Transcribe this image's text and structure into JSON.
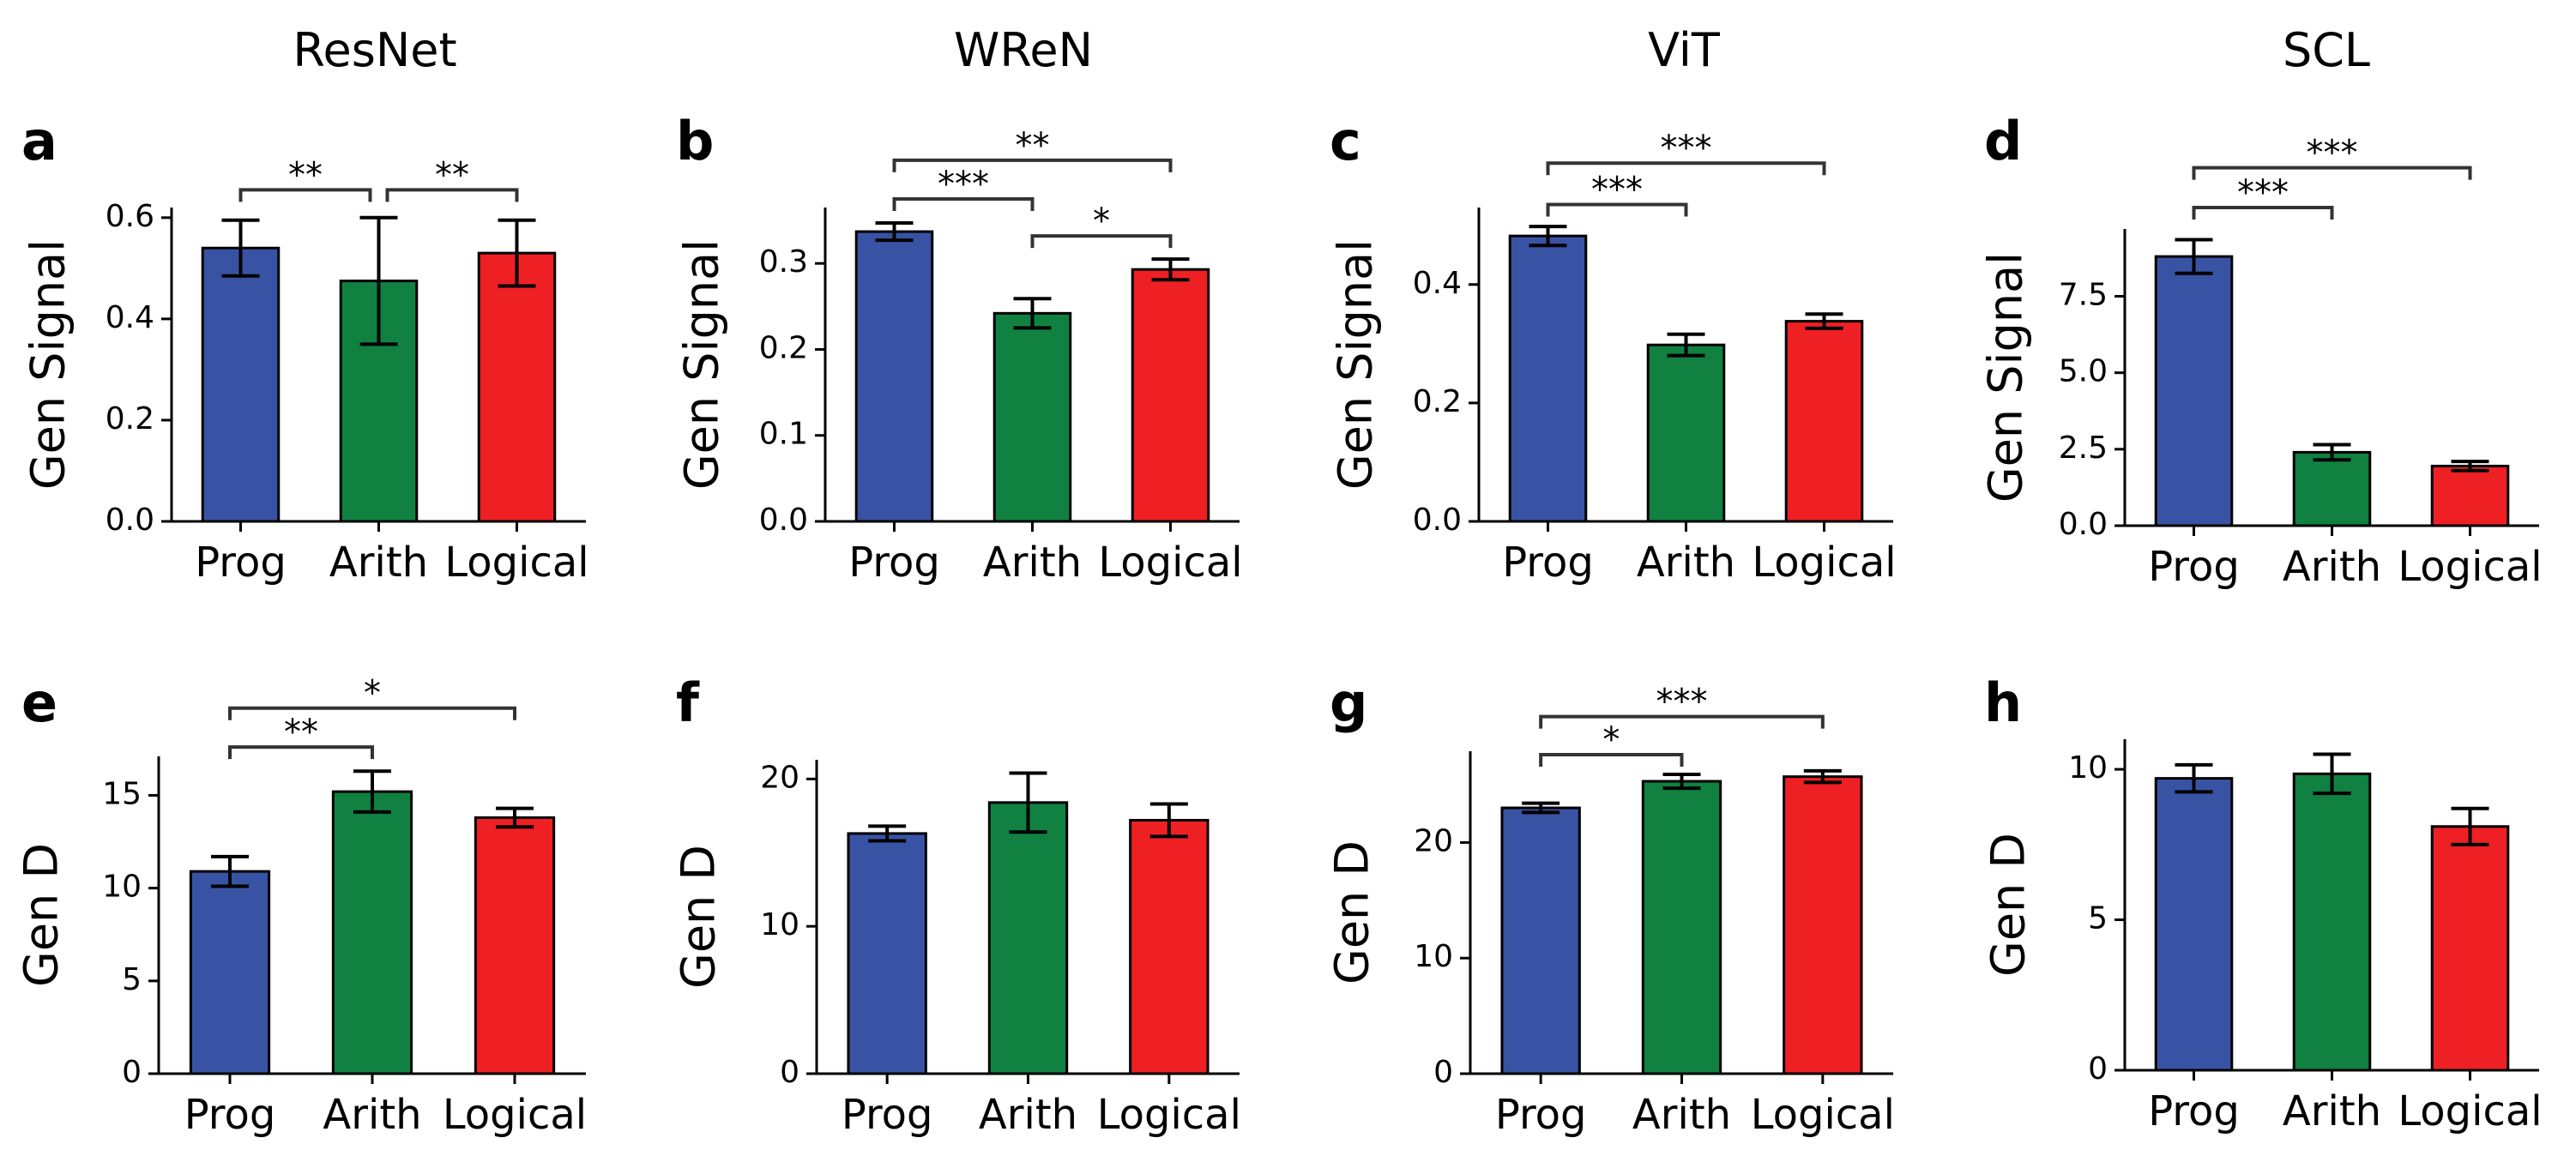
{
  "column_titles": [
    "ResNet",
    "WReN",
    "ViT",
    "SCL"
  ],
  "colors": {
    "Prog": "#3953a4",
    "Arith": "#108141",
    "Logical": "#ee2024"
  },
  "chart_data": [
    {
      "id": "a",
      "type": "bar",
      "title": "ResNet",
      "ylabel": "Gen Signal",
      "categories": [
        "Prog",
        "Arith",
        "Logical"
      ],
      "values": [
        0.54,
        0.475,
        0.53
      ],
      "errors": [
        0.055,
        0.125,
        0.065
      ],
      "ylim": [
        0,
        0.62
      ],
      "yticks": [
        0.0,
        0.2,
        0.4,
        0.6
      ],
      "ytick_labels": [
        "0.0",
        "0.2",
        "0.4",
        "0.6"
      ],
      "significance": [
        {
          "from": 0,
          "to": 1,
          "label": "**",
          "level": 0.655
        },
        {
          "from": 1,
          "to": 2,
          "label": "**",
          "level": 0.655
        }
      ]
    },
    {
      "id": "b",
      "type": "bar",
      "title": "WReN",
      "ylabel": "Gen Signal",
      "categories": [
        "Prog",
        "Arith",
        "Logical"
      ],
      "values": [
        0.337,
        0.242,
        0.293
      ],
      "errors": [
        0.01,
        0.017,
        0.012
      ],
      "ylim": [
        0,
        0.365
      ],
      "yticks": [
        0.0,
        0.1,
        0.2,
        0.3
      ],
      "ytick_labels": [
        "0.0",
        "0.1",
        "0.2",
        "0.3"
      ],
      "significance": [
        {
          "from": 0,
          "to": 2,
          "label": "**",
          "level": 0.42
        },
        {
          "from": 0,
          "to": 1,
          "label": "***",
          "level": 0.375
        },
        {
          "from": 1,
          "to": 2,
          "label": "*",
          "level": 0.332
        }
      ]
    },
    {
      "id": "c",
      "type": "bar",
      "title": "ViT",
      "ylabel": "Gen Signal",
      "categories": [
        "Prog",
        "Arith",
        "Logical"
      ],
      "values": [
        0.482,
        0.298,
        0.338
      ],
      "errors": [
        0.016,
        0.018,
        0.012
      ],
      "ylim": [
        0,
        0.53
      ],
      "yticks": [
        0.0,
        0.2,
        0.4
      ],
      "ytick_labels": [
        "0.0",
        "0.2",
        "0.4"
      ],
      "significance": [
        {
          "from": 0,
          "to": 2,
          "label": "***",
          "level": 0.605
        },
        {
          "from": 0,
          "to": 1,
          "label": "***",
          "level": 0.535
        }
      ]
    },
    {
      "id": "d",
      "type": "bar",
      "title": "SCL",
      "ylabel": "Gen Signal",
      "categories": [
        "Prog",
        "Arith",
        "Logical"
      ],
      "values": [
        8.8,
        2.4,
        1.95
      ],
      "errors": [
        0.55,
        0.25,
        0.15
      ],
      "ylim": [
        0,
        9.7
      ],
      "yticks": [
        0.0,
        2.5,
        5.0,
        7.5
      ],
      "ytick_labels": [
        "0.0",
        "2.5",
        "5.0",
        "7.5"
      ],
      "significance": [
        {
          "from": 0,
          "to": 2,
          "label": "***",
          "level": 11.7
        },
        {
          "from": 0,
          "to": 1,
          "label": "***",
          "level": 10.4
        }
      ]
    },
    {
      "id": "e",
      "type": "bar",
      "title": "ResNet",
      "ylabel": "Gen D",
      "categories": [
        "Prog",
        "Arith",
        "Logical"
      ],
      "values": [
        10.9,
        15.2,
        13.8
      ],
      "errors": [
        0.8,
        1.1,
        0.5
      ],
      "ylim": [
        0,
        17.1
      ],
      "yticks": [
        0,
        5,
        10,
        15
      ],
      "ytick_labels": [
        "0",
        "5",
        "10",
        "15"
      ],
      "significance": [
        {
          "from": 0,
          "to": 2,
          "label": "*",
          "level": 19.7
        },
        {
          "from": 0,
          "to": 1,
          "label": "**",
          "level": 17.6
        }
      ]
    },
    {
      "id": "f",
      "type": "bar",
      "title": "WReN",
      "ylabel": "Gen D",
      "categories": [
        "Prog",
        "Arith",
        "Logical"
      ],
      "values": [
        16.3,
        18.4,
        17.2
      ],
      "errors": [
        0.5,
        2.0,
        1.1
      ],
      "ylim": [
        0,
        21.3
      ],
      "yticks": [
        0,
        10,
        20
      ],
      "ytick_labels": [
        "0",
        "10",
        "20"
      ],
      "significance": []
    },
    {
      "id": "g",
      "type": "bar",
      "title": "ViT",
      "ylabel": "Gen D",
      "categories": [
        "Prog",
        "Arith",
        "Logical"
      ],
      "values": [
        23.0,
        25.3,
        25.7
      ],
      "errors": [
        0.4,
        0.6,
        0.5
      ],
      "ylim": [
        0,
        27.9
      ],
      "yticks": [
        0,
        10,
        20
      ],
      "ytick_labels": [
        "0",
        "10",
        "20"
      ],
      "significance": [
        {
          "from": 0,
          "to": 2,
          "label": "***",
          "level": 30.9
        },
        {
          "from": 0,
          "to": 1,
          "label": "*",
          "level": 27.6
        }
      ]
    },
    {
      "id": "h",
      "type": "bar",
      "title": "SCL",
      "ylabel": "Gen D",
      "categories": [
        "Prog",
        "Arith",
        "Logical"
      ],
      "values": [
        9.7,
        9.85,
        8.1
      ],
      "errors": [
        0.45,
        0.65,
        0.6
      ],
      "ylim": [
        0,
        11.0
      ],
      "yticks": [
        0,
        5,
        10
      ],
      "ytick_labels": [
        "0",
        "5",
        "10"
      ],
      "significance": []
    }
  ]
}
